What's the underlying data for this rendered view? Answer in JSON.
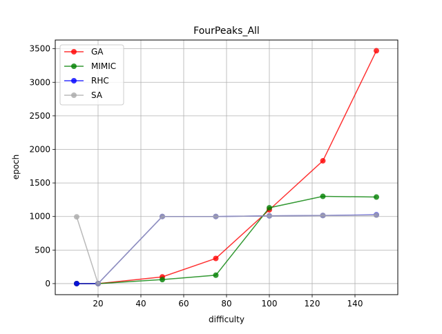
{
  "chart_data": {
    "type": "line",
    "title": "FourPeaks_All",
    "xlabel": "difficulty",
    "ylabel": "epoch",
    "xlim": [
      0,
      160
    ],
    "ylim": [
      -165,
      3630
    ],
    "xticks": [
      20,
      40,
      60,
      80,
      100,
      120,
      140
    ],
    "yticks": [
      0,
      500,
      1000,
      1500,
      2000,
      2500,
      3000,
      3500
    ],
    "grid": true,
    "legend_position": "upper-left",
    "x": [
      10,
      20,
      50,
      75,
      100,
      125,
      150
    ],
    "series": [
      {
        "name": "GA",
        "color": "#ff0000",
        "values": [
          0,
          0,
          100,
          375,
          1100,
          1830,
          3470
        ]
      },
      {
        "name": "MIMIC",
        "color": "#008000",
        "values": [
          0,
          0,
          60,
          125,
          1130,
          1300,
          1290
        ]
      },
      {
        "name": "RHC",
        "color": "#0000ff",
        "values": [
          0,
          0,
          1000,
          1000,
          1010,
          1015,
          1025
        ]
      },
      {
        "name": "SA",
        "color": "#a9a9a9",
        "values": [
          995,
          0,
          1000,
          1000,
          1010,
          1015,
          1020
        ]
      }
    ]
  }
}
